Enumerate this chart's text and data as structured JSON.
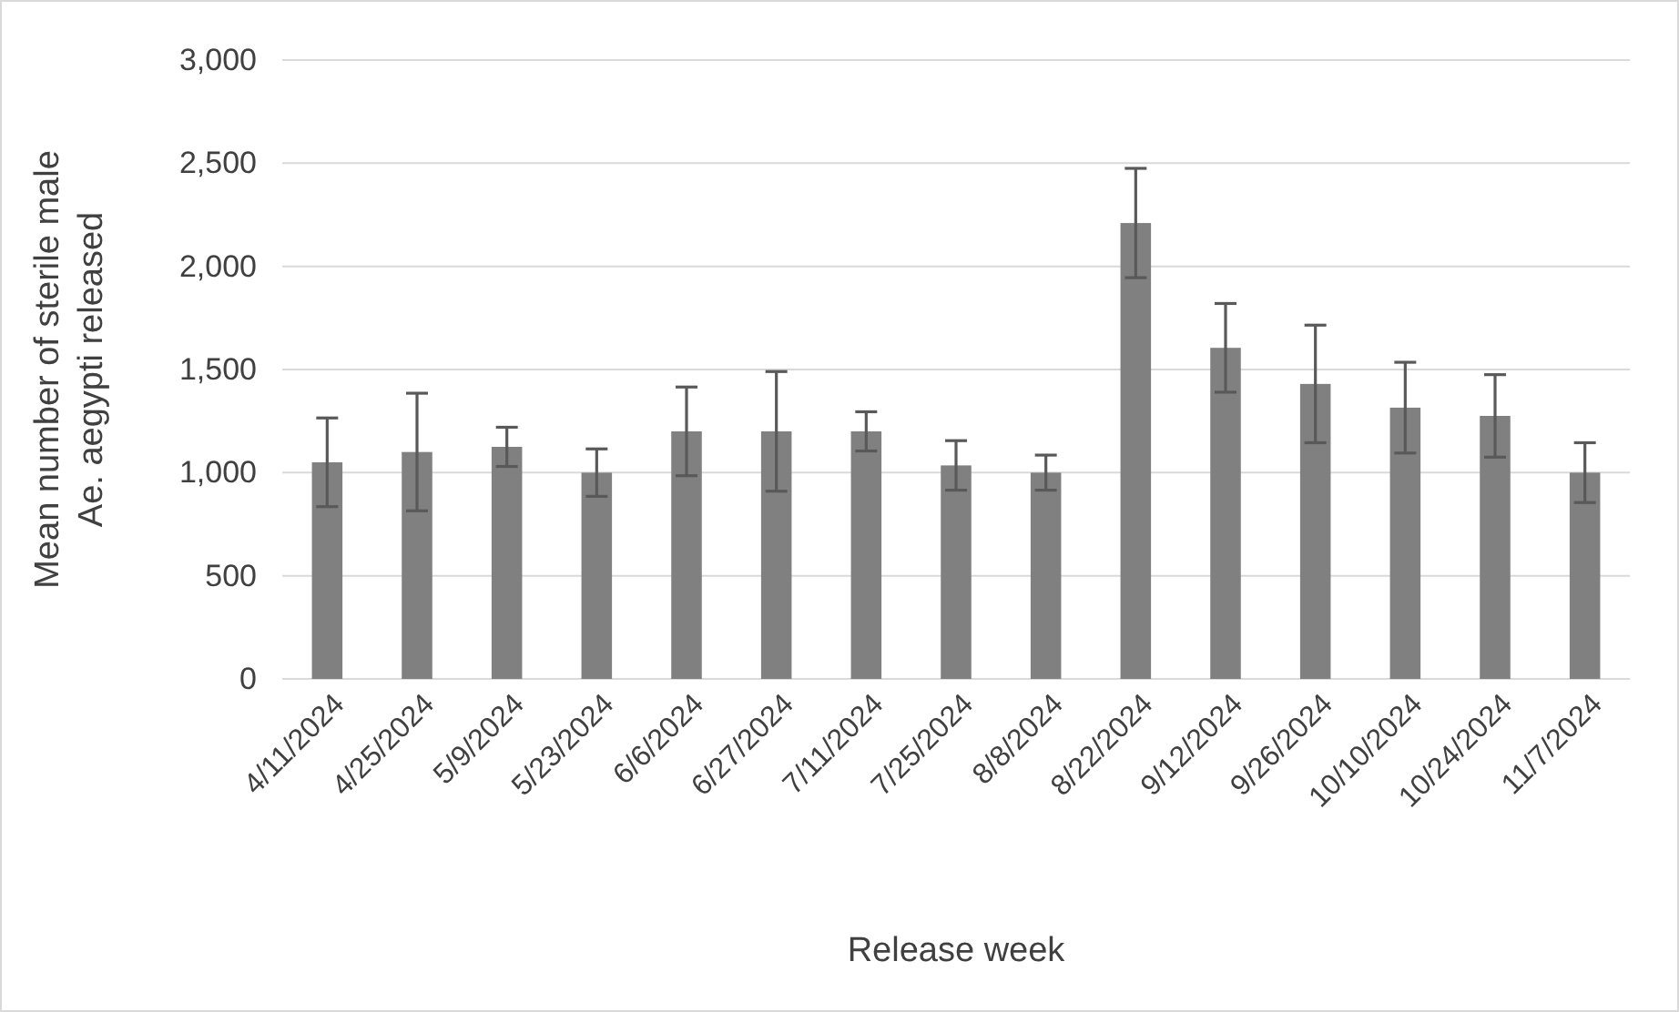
{
  "chart_data": {
    "type": "bar",
    "xlabel": "Release week",
    "ylabel": "Mean number of sterile male Ae. aegypti released",
    "categories": [
      "4/11/2024",
      "4/25/2024",
      "5/9/2024",
      "5/23/2024",
      "6/6/2024",
      "6/27/2024",
      "7/11/2024",
      "7/25/2024",
      "8/8/2024",
      "8/22/2024",
      "9/12/2024",
      "9/26/2024",
      "10/10/2024",
      "10/24/2024",
      "11/7/2024"
    ],
    "values": [
      1050,
      1100,
      1125,
      1000,
      1200,
      1200,
      1200,
      1035,
      1000,
      2210,
      1605,
      1430,
      1315,
      1275,
      1000
    ],
    "errors": [
      215,
      285,
      95,
      115,
      215,
      290,
      95,
      120,
      85,
      265,
      215,
      285,
      220,
      200,
      145
    ],
    "color": "#808080",
    "ylim": [
      0,
      3000
    ],
    "yticks": [
      {
        "value": 0,
        "label": "0"
      },
      {
        "value": 500,
        "label": "500"
      },
      {
        "value": 1000,
        "label": "1,000"
      },
      {
        "value": 1500,
        "label": "1,500"
      },
      {
        "value": 2000,
        "label": "2,000"
      },
      {
        "value": 2500,
        "label": "2,500"
      },
      {
        "value": 3000,
        "label": "3,000"
      }
    ],
    "grid": "y"
  }
}
